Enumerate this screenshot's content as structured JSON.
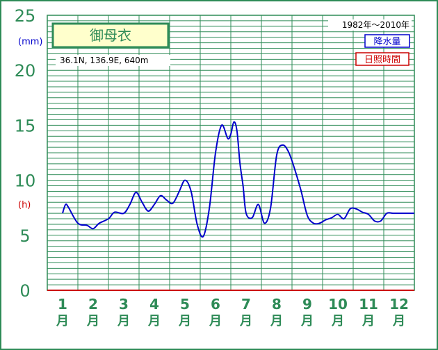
{
  "chart_data": {
    "type": "line",
    "title": "御母衣",
    "location": "36.1N,  136.9E,  640m",
    "period": "1982年〜2010年",
    "y_unit_left": "(mm)",
    "y_unit_right": "(h)",
    "ylim": [
      0,
      25
    ],
    "y_ticks": [
      "0",
      "5",
      "10",
      "15",
      "20",
      "25"
    ],
    "x_ticks": [
      {
        "num": "1",
        "unit": "月"
      },
      {
        "num": "2",
        "unit": "月"
      },
      {
        "num": "3",
        "unit": "月"
      },
      {
        "num": "4",
        "unit": "月"
      },
      {
        "num": "5",
        "unit": "月"
      },
      {
        "num": "6",
        "unit": "月"
      },
      {
        "num": "7",
        "unit": "月"
      },
      {
        "num": "8",
        "unit": "月"
      },
      {
        "num": "9",
        "unit": "月"
      },
      {
        "num": "10",
        "unit": "月"
      },
      {
        "num": "11",
        "unit": "月"
      },
      {
        "num": "12",
        "unit": "月"
      }
    ],
    "legend": [
      {
        "label": "降水量",
        "color": "#0000cc"
      },
      {
        "label": "日照時間",
        "color": "#cc0000"
      }
    ],
    "grid": true,
    "series": [
      {
        "name": "降水量",
        "color": "#0000cc",
        "x": [
          1,
          1.1,
          1.2,
          1.5,
          1.8,
          2,
          2.2,
          2.5,
          2.7,
          3,
          3.2,
          3.4,
          3.6,
          3.8,
          4,
          4.2,
          4.4,
          4.6,
          4.8,
          5,
          5.2,
          5.4,
          5.6,
          5.8,
          6,
          6.2,
          6.4,
          6.5,
          6.6,
          6.7,
          6.8,
          6.9,
          7,
          7.2,
          7.4,
          7.6,
          7.8,
          8,
          8.2,
          8.4,
          8.6,
          8.8,
          9,
          9.2,
          9.4,
          9.6,
          9.8,
          10,
          10.2,
          10.4,
          10.6,
          10.8,
          11,
          11.2,
          11.4,
          11.6,
          11.8,
          12,
          12.2,
          12.4,
          12.5
        ],
        "values": [
          7.0,
          7.8,
          7.5,
          6.1,
          5.9,
          5.6,
          6.1,
          6.5,
          7.1,
          7.0,
          7.8,
          8.9,
          8.0,
          7.2,
          7.8,
          8.6,
          8.2,
          7.9,
          8.9,
          10.0,
          9.0,
          6.0,
          4.9,
          7.5,
          12.5,
          15.0,
          13.8,
          14.2,
          15.3,
          14.5,
          11.5,
          9.5,
          7.0,
          6.6,
          7.8,
          6.1,
          7.5,
          12.3,
          13.2,
          12.5,
          10.9,
          9.0,
          6.8,
          6.1,
          6.1,
          6.4,
          6.6,
          6.9,
          6.5,
          7.4,
          7.4,
          7.1,
          6.9,
          6.3,
          6.3,
          7.0,
          7.0,
          7.0,
          7.0,
          7.0,
          7.0
        ]
      }
    ]
  }
}
